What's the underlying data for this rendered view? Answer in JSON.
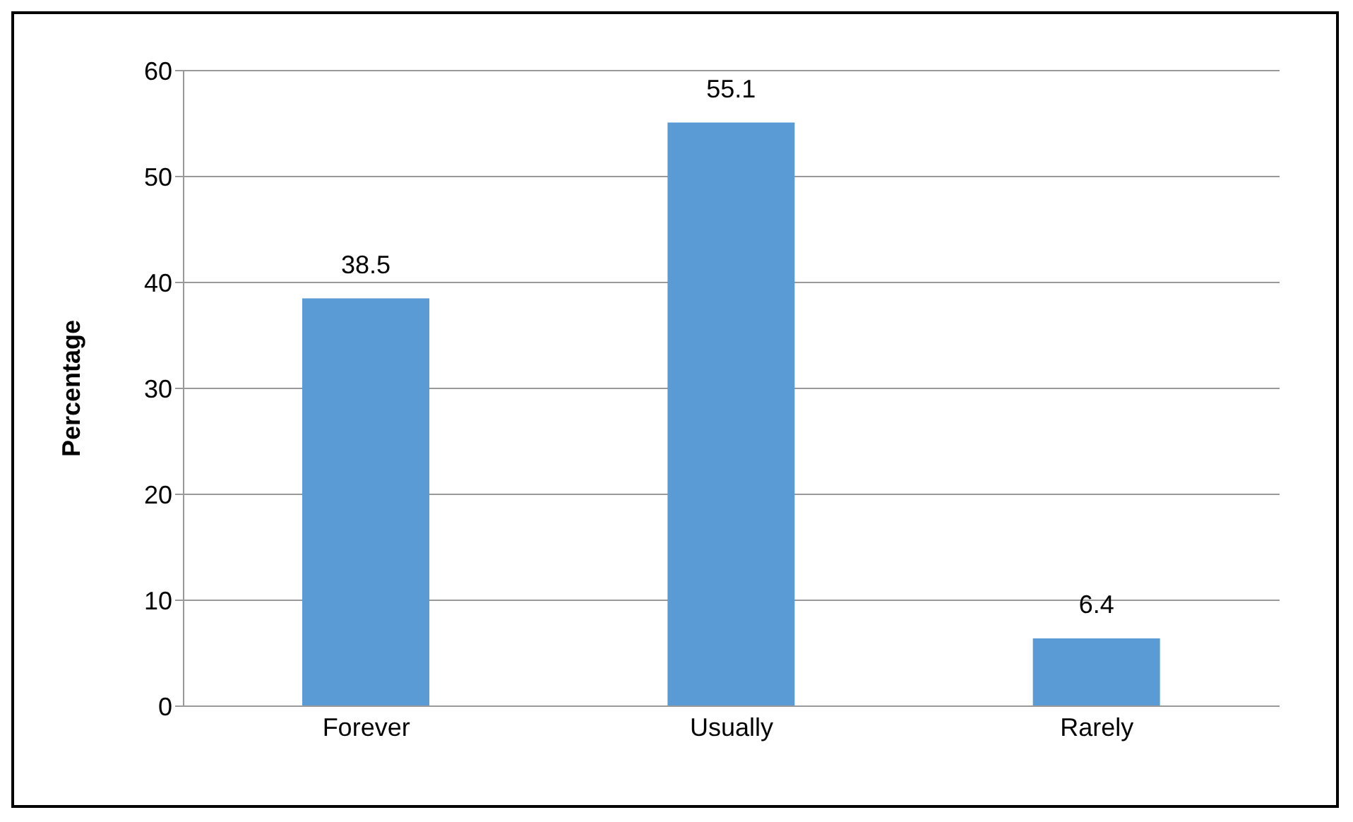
{
  "chart_data": {
    "type": "bar",
    "ylabel": "Percentage",
    "categories": [
      "Forever",
      "Usually",
      "Rarely"
    ],
    "values": [
      38.5,
      55.1,
      6.4
    ],
    "color": "#5b9bd5",
    "ylim": [
      0,
      60
    ],
    "yticks": [
      0,
      10,
      20,
      30,
      40,
      50,
      60
    ],
    "grid": "y",
    "data_labels": true
  }
}
